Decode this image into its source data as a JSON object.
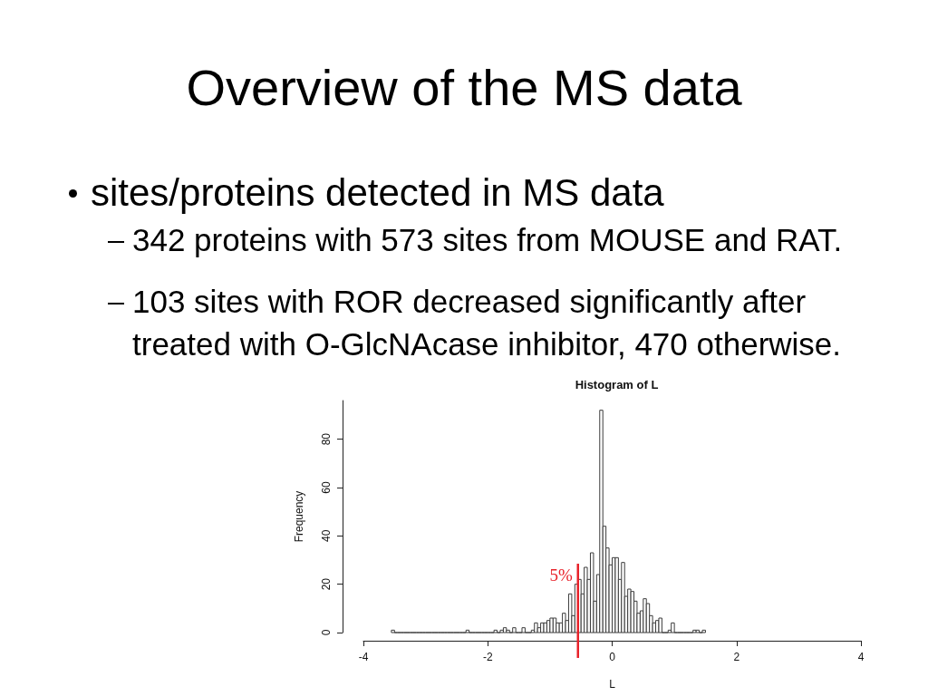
{
  "chart_data": {
    "type": "histogram",
    "title": "Overview of the MS data",
    "subtitle": "Histogram of L",
    "annotations": [
      "sites/proteins detected in MS data",
      "342 proteins with 573 sites from MOUSE and RAT.",
      "103 sites with ROR decreased significantly after treated with O-GlcNAcase inhibitor, 470 otherwise.",
      {
        "text": "5%",
        "x": -0.55,
        "y": 24
      }
    ],
    "xlabel": "L",
    "ylabel": "Frequency",
    "bins": [
      -3.55,
      -3.5,
      -3.45,
      -3.4,
      -3.35,
      -3.3,
      -3.25,
      -3.2,
      -3.15,
      -3.1,
      -3.05,
      -3,
      -2.95,
      -2.9,
      -2.85,
      -2.8,
      -2.75,
      -2.7,
      -2.65,
      -2.6,
      -2.55,
      -2.5,
      -2.45,
      -2.4,
      -2.35,
      -2.3,
      -2.25,
      -2.2,
      -2.15,
      -2.1,
      -2.05,
      -2,
      -1.95,
      -1.9,
      -1.85,
      -1.8,
      -1.75,
      -1.7,
      -1.65,
      -1.6,
      -1.55,
      -1.5,
      -1.45,
      -1.4,
      -1.35,
      -1.3,
      -1.25,
      -1.2,
      -1.15,
      -1.1,
      -1.05,
      -1,
      -0.95,
      -0.9,
      -0.85,
      -0.8,
      -0.75,
      -0.7,
      -0.65,
      -0.6,
      -0.55,
      -0.5,
      -0.45,
      -0.4,
      -0.35,
      -0.3,
      -0.25,
      -0.2,
      -0.15,
      -0.1,
      -0.05,
      0,
      0.05,
      0.1,
      0.15,
      0.2,
      0.25,
      0.3,
      0.35,
      0.4,
      0.45,
      0.5,
      0.55,
      0.6,
      0.65,
      0.7,
      0.75,
      0.8,
      0.85,
      0.9,
      0.95,
      1,
      1.05,
      1.1,
      1.15,
      1.2,
      1.25,
      1.3,
      1.35,
      1.4,
      1.45,
      1.5
    ],
    "values": [
      1,
      0,
      0,
      0,
      0,
      0,
      0,
      0,
      0,
      0,
      0,
      0,
      0,
      0,
      0,
      0,
      0,
      0,
      0,
      0,
      0,
      0,
      0,
      0,
      1,
      0,
      0,
      0,
      0,
      0,
      0,
      0,
      0,
      1,
      0,
      1,
      2,
      1,
      0,
      2,
      0,
      0,
      2,
      0,
      0,
      1,
      4,
      2,
      4,
      4,
      5,
      6,
      6,
      4,
      4,
      8,
      5,
      16,
      7,
      20,
      22,
      16,
      27,
      22,
      33,
      13,
      24,
      92,
      44,
      35,
      28,
      31,
      31,
      22,
      29,
      15,
      18,
      17,
      13,
      8,
      9,
      14,
      12,
      7,
      4,
      5,
      6,
      0,
      0,
      1,
      4,
      0,
      0,
      0,
      0,
      0,
      0,
      1,
      1,
      0,
      1
    ],
    "color": "#3c3c3c",
    "xlim": [
      -4,
      4
    ],
    "ylim": [
      0,
      96
    ],
    "xticks": [
      -4,
      -2,
      0,
      2,
      4
    ],
    "yticks": [
      0,
      20,
      40,
      60,
      80
    ],
    "grid": false,
    "ref_lines": [
      {
        "axis": "x",
        "value": -0.55,
        "color": "#e8222a"
      }
    ]
  }
}
